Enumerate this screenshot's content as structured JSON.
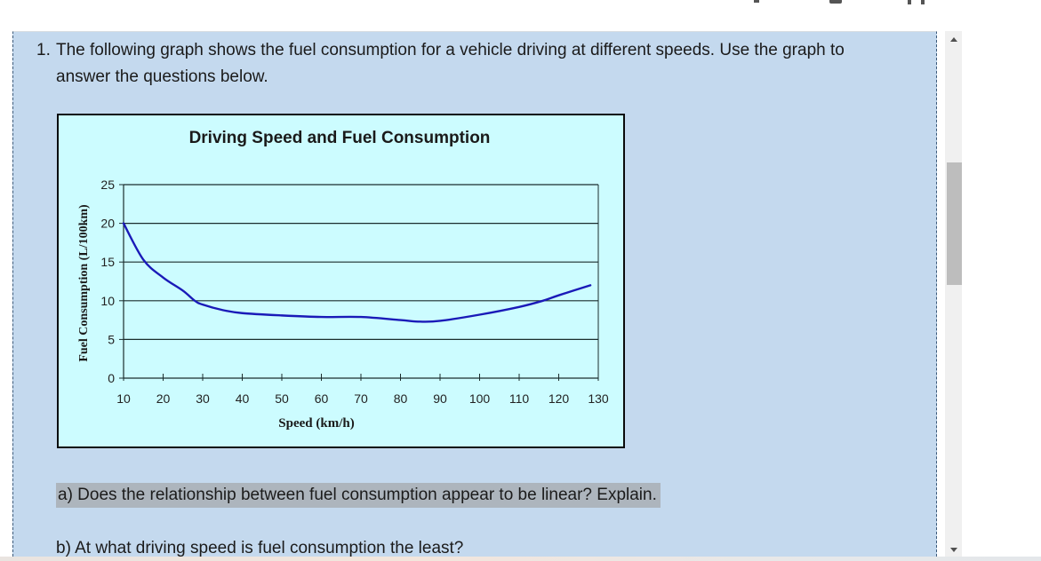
{
  "question": {
    "number": "1.",
    "intro_line1": "The following graph shows the fuel consumption for a vehicle driving at different speeds. Use the graph to",
    "intro_line2": "answer the questions below.",
    "sub_questions": [
      {
        "label": "a) Does the relationship between fuel consumption appear to be linear? Explain.",
        "highlighted": true
      },
      {
        "label": "b) At what driving speed is fuel consumption the least?",
        "highlighted": false
      }
    ]
  },
  "chart_data": {
    "type": "line",
    "title": "Driving Speed and Fuel Consumption",
    "xlabel": "Speed (km/h)",
    "ylabel": "Fuel Consumption (L/100km)",
    "xlim": [
      10,
      130
    ],
    "ylim": [
      0,
      25
    ],
    "x_ticks": [
      10,
      20,
      30,
      40,
      50,
      60,
      70,
      80,
      90,
      100,
      110,
      120,
      130
    ],
    "y_ticks": [
      0,
      5,
      10,
      15,
      20,
      25
    ],
    "grid": "horizontal",
    "legend": "none",
    "background": "#ccfcff",
    "line_color": "#1a1ab8",
    "series": [
      {
        "name": "Fuel Consumption",
        "x": [
          10,
          15,
          20,
          25,
          28,
          30,
          35,
          40,
          50,
          60,
          70,
          80,
          85,
          90,
          100,
          110,
          116,
          120,
          128
        ],
        "values": [
          20,
          15.3,
          13,
          11.3,
          10,
          9.5,
          8.8,
          8.4,
          8.1,
          7.9,
          7.9,
          7.5,
          7.3,
          7.4,
          8.2,
          9.2,
          10,
          10.7,
          12
        ]
      }
    ]
  },
  "scrollbar": {
    "up_icon": "triangle-up",
    "down_icon": "triangle-down"
  }
}
